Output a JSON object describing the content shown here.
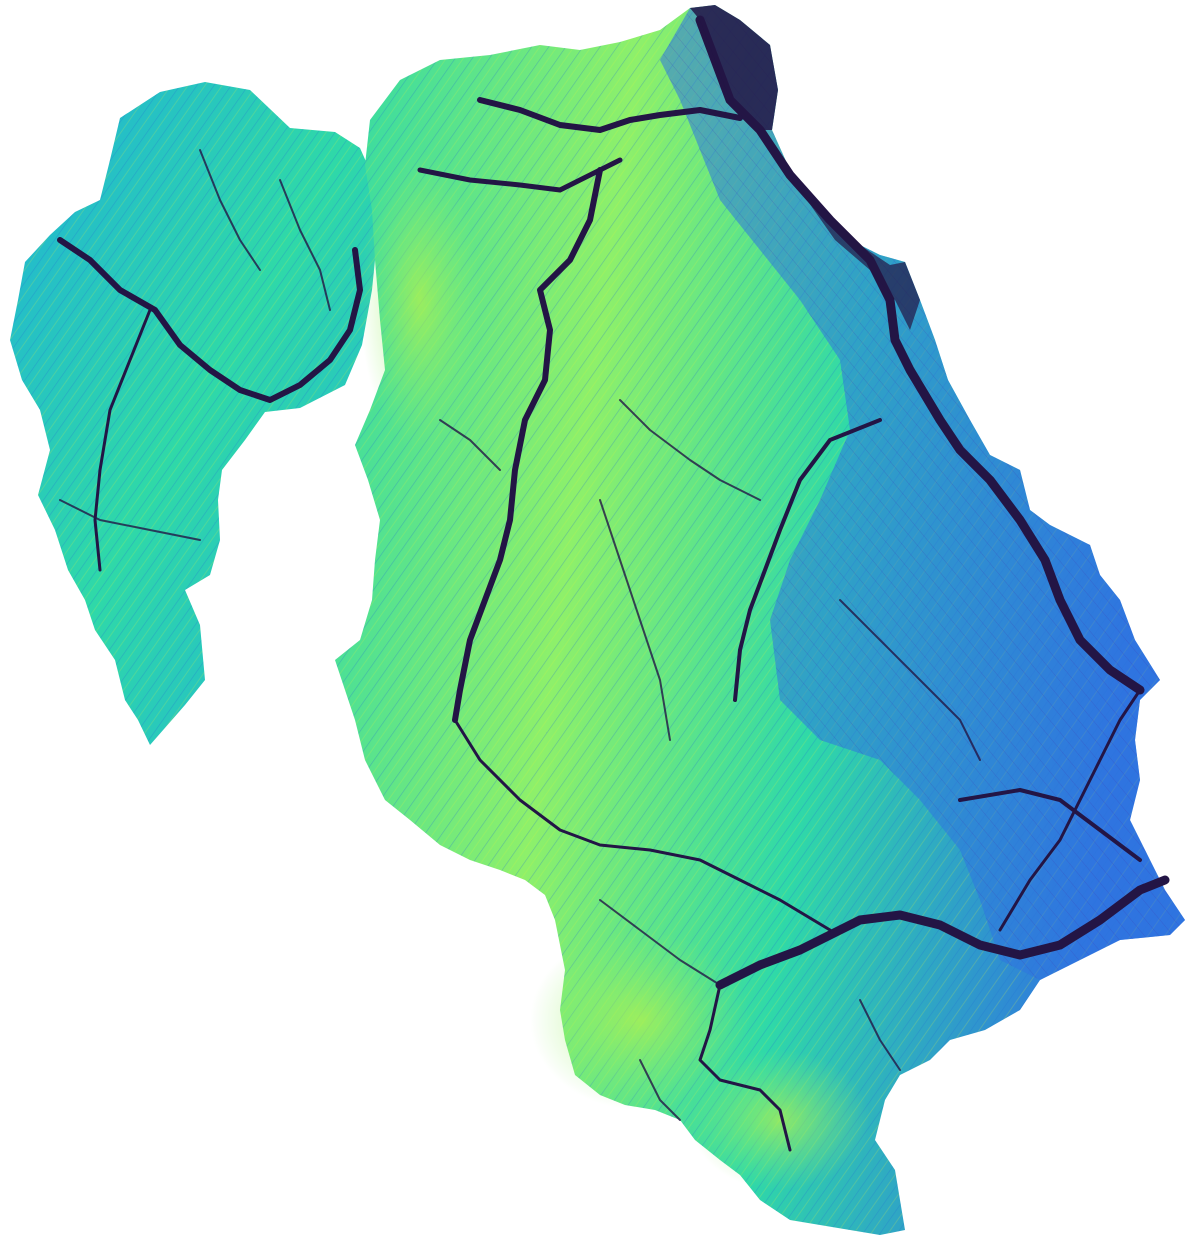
{
  "map": {
    "colormap": [
      "#2b1a4a",
      "#3f3ab0",
      "#2f74e0",
      "#1fb0d8",
      "#2fd9a8",
      "#8ef06a",
      "#d6f53a"
    ],
    "background": "#ffffff",
    "river_color": "#231545",
    "region_fill_low": "#1fb0d8",
    "region_fill_high": "#8ef06a"
  }
}
